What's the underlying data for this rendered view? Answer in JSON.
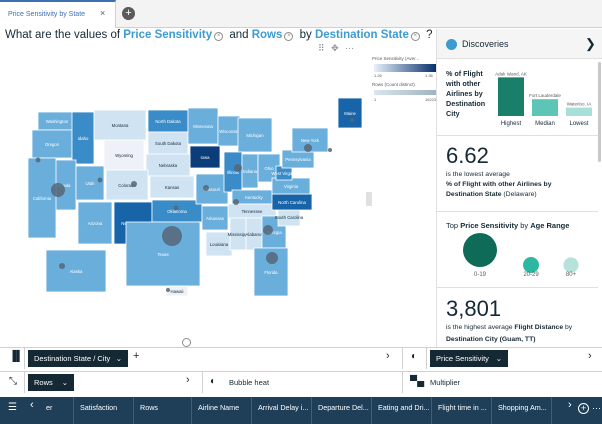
{
  "tab": {
    "title": "Price Sensitivity by State",
    "close": "×",
    "add": "+"
  },
  "question": {
    "prefix": "What are the values of",
    "field1": "Price Sensitivity",
    "and": "and",
    "field2": "Rows",
    "by": "by",
    "field3": "Destination State",
    "suffix": "?",
    "remove": "×"
  },
  "viz_tools": "⠿ ✥ ⋯",
  "legend": {
    "price_label": "Price Sensitivity (Aver...",
    "price_min": "1.26",
    "price_max": "1.36",
    "rows_label": "Rows (Count distinct)",
    "rows_min": "1",
    "rows_max": "16223"
  },
  "map": {
    "states": [
      {
        "name": "Washington"
      },
      {
        "name": "Oregon"
      },
      {
        "name": "Idaho"
      },
      {
        "name": "Montana"
      },
      {
        "name": "Wyoming"
      },
      {
        "name": "North Dakota"
      },
      {
        "name": "South Dakota"
      },
      {
        "name": "Minnesota"
      },
      {
        "name": "Wisconsin"
      },
      {
        "name": "Michigan"
      },
      {
        "name": "Iowa"
      },
      {
        "name": "Nebraska"
      },
      {
        "name": "Nevada"
      },
      {
        "name": "Utah"
      },
      {
        "name": "Colorado"
      },
      {
        "name": "Kansas"
      },
      {
        "name": "California"
      },
      {
        "name": "Arizona"
      },
      {
        "name": "New Mexico"
      },
      {
        "name": "Oklahoma"
      },
      {
        "name": "Texas"
      },
      {
        "name": "Missouri"
      },
      {
        "name": "Illinois"
      },
      {
        "name": "Indiana"
      },
      {
        "name": "Ohio"
      },
      {
        "name": "Kentucky"
      },
      {
        "name": "Tennessee"
      },
      {
        "name": "Arkansas"
      },
      {
        "name": "Louisiana"
      },
      {
        "name": "Mississippi"
      },
      {
        "name": "Alabama"
      },
      {
        "name": "Georgia"
      },
      {
        "name": "Florida"
      },
      {
        "name": "South Carolina"
      },
      {
        "name": "North Carolina"
      },
      {
        "name": "Virginia"
      },
      {
        "name": "West Virginia"
      },
      {
        "name": "Pennsylvania"
      },
      {
        "name": "New York"
      },
      {
        "name": "Maine"
      },
      {
        "name": "Alaska"
      },
      {
        "name": "Hawaii"
      }
    ],
    "colors": {
      "light": "#cfe3f3",
      "mid": "#6aaedc",
      "midDark": "#3a8cc9",
      "dark": "#1764a8",
      "darkest": "#0b3d7a",
      "pale": "#eef2f8",
      "bubble": "#556677"
    }
  },
  "discoveries": {
    "title": "Discoveries",
    "expand": "❯",
    "card1": {
      "text": "% of Flight with other Airlines by Destination City",
      "bars": [
        {
          "label": "Highest",
          "city": "Adak Island, AK",
          "value": 0.92,
          "color": "#1a7f6a"
        },
        {
          "label": "Median",
          "city": "Fort Lauderdale",
          "value": 0.4,
          "color": "#5cc5b5"
        },
        {
          "label": "Lowest",
          "city": "Waterloo, IA",
          "value": 0.2,
          "color": "#a7e0d8"
        }
      ]
    },
    "card2": {
      "value": "6.62",
      "line1": "is the lowest average",
      "line2": "% of Flight with other Airlines by",
      "line3_bold": "Destination State",
      "line3_rest": " (Delaware)"
    },
    "card3": {
      "title_prefix": "Top ",
      "title_bold1": "Price Sensitivity",
      "title_mid": " by ",
      "title_bold2": "Age Range",
      "bubbles": [
        {
          "label": "0-19",
          "size": 1.0,
          "color": "#0e6b57"
        },
        {
          "label": "20-29",
          "size": 0.22,
          "color": "#2bb7a0"
        },
        {
          "label": "80+",
          "size": 0.2,
          "color": "#b5e3dc"
        }
      ]
    },
    "card4": {
      "value": "3,801",
      "line1_prefix": "is the highest average ",
      "line1_bold": "Flight Distance",
      "line1_suffix": " by",
      "line2": "Destination City (Guam, TT)"
    }
  },
  "zones": {
    "row1": {
      "pill": "Destination State / City",
      "add": "+",
      "right_pill": "Price Sensitivity"
    },
    "row2": {
      "pill": "Rows",
      "mid_label": "Bubble heat",
      "right_label": "Multiplier"
    }
  },
  "fields": [
    "er",
    "Satisfaction",
    "Rows",
    "Airline Name",
    "Arrival Delay i...",
    "Departure Del...",
    "Eating and Dri...",
    "Flight time in ...",
    "Shopping Am..."
  ]
}
